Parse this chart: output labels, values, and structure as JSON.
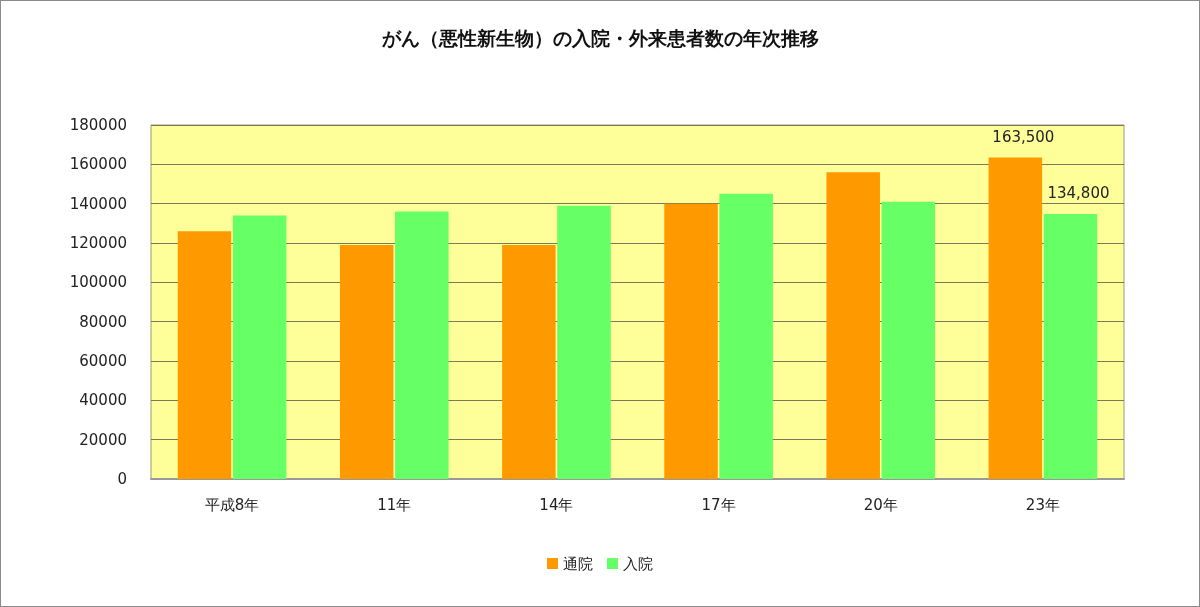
{
  "chart_data": {
    "type": "bar",
    "title": "がん（悪性新生物）の入院・外来患者数の年次推移",
    "categories": [
      "平成8年",
      "11年",
      "14年",
      "17年",
      "20年",
      "23年"
    ],
    "series": [
      {
        "name": "通院",
        "color": "#ff9900",
        "values": [
          126000,
          119000,
          119000,
          140000,
          156000,
          163500
        ],
        "value_labels": [
          null,
          null,
          null,
          null,
          null,
          "163,500"
        ]
      },
      {
        "name": "入院",
        "color": "#66ff66",
        "values": [
          134000,
          136000,
          139000,
          145000,
          141000,
          134800
        ],
        "value_labels": [
          null,
          null,
          null,
          null,
          null,
          "134,800"
        ]
      }
    ],
    "ylim": [
      0,
      180000
    ],
    "yticks": [
      0,
      20000,
      40000,
      60000,
      80000,
      100000,
      120000,
      140000,
      160000,
      180000
    ],
    "grid": "y",
    "legend": "bottom"
  }
}
